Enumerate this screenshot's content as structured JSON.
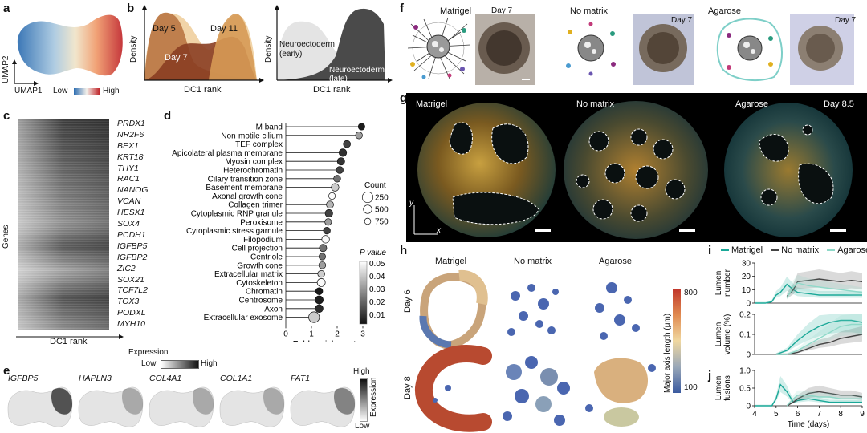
{
  "panels": {
    "a": {
      "letter": "a",
      "umap2": "UMAP2",
      "umap1": "UMAP1",
      "low": "Low",
      "high": "High"
    },
    "b": {
      "letter": "b",
      "density": "Density",
      "dc1": "DC1 rank",
      "day5": "Day 5",
      "day7": "Day 7",
      "day11": "Day 11",
      "ne_early_1": "Neuroectoderm",
      "ne_early_2": "(early)",
      "ne_late_1": "Neuroectoderm",
      "ne_late_2": "(late)"
    },
    "c": {
      "letter": "c",
      "genes_label": "Genes",
      "dc1": "DC1 rank",
      "expression": "Expression",
      "low": "Low",
      "high": "High",
      "genes": [
        "PRDX1",
        "NR2F6",
        "BEX1",
        "KRT18",
        "THY1",
        "RAC1",
        "NANOG",
        "VCAN",
        "HESX1",
        "SOX4",
        "PCDH1",
        "IGFBP5",
        "IGFBP2",
        "ZIC2",
        "SOX21",
        "TCF7L2",
        "TOX3",
        "PODXL",
        "MYH10"
      ]
    },
    "e": {
      "letter": "e",
      "genes": [
        "IGFBP5",
        "HAPLN3",
        "COL4A1",
        "COL1A1",
        "FAT1"
      ],
      "high": "High",
      "low": "Low",
      "expression": "Expression"
    },
    "f": {
      "letter": "f",
      "matrigel": "Matrigel",
      "no_matrix": "No matrix",
      "agarose": "Agarose",
      "day": "Day 7"
    },
    "g": {
      "letter": "g",
      "matrigel": "Matrigel",
      "no_matrix": "No matrix",
      "agarose": "Agarose",
      "day": "Day 8.5",
      "y": "y",
      "x": "x"
    },
    "h": {
      "letter": "h",
      "matrigel": "Matrigel",
      "no_matrix": "No matrix",
      "agarose": "Agarose",
      "day6": "Day 6",
      "day8": "Day 8",
      "colorbar_label": "Major axis length (μm)",
      "cb_high": "800",
      "cb_low": "100"
    },
    "i": {
      "letter": "i",
      "legend": [
        "Matrigel",
        "No matrix",
        "Agarose"
      ],
      "ylabel_top_1": "Lumen",
      "ylabel_top_2": "number",
      "ylabel_mid_1": "Lumen",
      "ylabel_mid_2": "volume (%)"
    },
    "j": {
      "letter": "j",
      "ylabel_1": "Lumen",
      "ylabel_2": "fusions",
      "xlabel": "Time (days)"
    },
    "d": {
      "letter": "d",
      "xlabel": "Fold enrichment",
      "count_title": "Count",
      "pval_title": "P value"
    }
  },
  "chart_data": [
    {
      "type": "scatter",
      "panel": "d",
      "xlabel": "Fold enrichment",
      "xlim": [
        0,
        3
      ],
      "xticks": [
        0,
        1,
        2,
        3
      ],
      "categories": [
        "M band",
        "Non-motile cilium",
        "TEF complex",
        "Apicolateral plasma membrane",
        "Myosin complex",
        "Heterochromatin",
        "Cilary transition zone",
        "Basement membrane",
        "Axonal growth cone",
        "Collagen trimer",
        "Cytoplasmic RNP granule",
        "Peroxisome",
        "Cytoplasmic stress garnule",
        "Filopodium",
        "Cell projection",
        "Centriole",
        "Growth cone",
        "Extracellular matrix",
        "Cytoskeleton",
        "Chromatin",
        "Centrosome",
        "Axon",
        "Extracellular exosome"
      ],
      "values": [
        2.95,
        2.85,
        2.38,
        2.22,
        2.15,
        2.1,
        2.0,
        1.92,
        1.8,
        1.72,
        1.68,
        1.65,
        1.6,
        1.55,
        1.45,
        1.42,
        1.42,
        1.38,
        1.38,
        1.3,
        1.3,
        1.3,
        1.1
      ],
      "pvalues": [
        0.002,
        0.03,
        0.01,
        0.006,
        0.007,
        0.01,
        0.02,
        0.04,
        0.05,
        0.035,
        0.01,
        0.03,
        0.01,
        0.05,
        0.02,
        0.02,
        0.03,
        0.04,
        0.05,
        0.001,
        0.002,
        0.005,
        0.04
      ],
      "counts": [
        300,
        320,
        350,
        400,
        380,
        340,
        330,
        400,
        300,
        350,
        400,
        300,
        320,
        400,
        380,
        300,
        330,
        330,
        450,
        340,
        450,
        420,
        750
      ],
      "count_legend": [
        250,
        500,
        750
      ],
      "pvalue_legend": [
        0.05,
        0.04,
        0.03,
        0.02,
        0.01
      ]
    },
    {
      "type": "line",
      "panel": "i",
      "ylabel": "Lumen number",
      "ylim": [
        0,
        30
      ],
      "yticks": [
        0,
        10,
        20,
        30
      ],
      "xlim": [
        4,
        9
      ],
      "series": [
        {
          "name": "Matrigel",
          "color": "#1aa898",
          "x": [
            4,
            4.5,
            4.8,
            5,
            5.2,
            5.5,
            5.8,
            6,
            6.5,
            7,
            7.5,
            8,
            8.5,
            9
          ],
          "y": [
            0,
            0,
            1,
            6,
            8,
            14,
            10,
            8,
            7,
            6,
            6,
            6,
            6,
            6
          ]
        },
        {
          "name": "No matrix",
          "color": "#444444",
          "x": [
            5.5,
            5.8,
            6,
            6.5,
            7,
            7.5,
            8,
            8.5,
            9
          ],
          "y": [
            5,
            10,
            16,
            17,
            18,
            17,
            16,
            17,
            16
          ]
        },
        {
          "name": "Agarose",
          "color": "#8fd9c9",
          "x": [
            5.5,
            5.8,
            6,
            6.5,
            7,
            7.5,
            8,
            8.5,
            9
          ],
          "y": [
            4,
            12,
            15,
            13,
            12,
            11,
            10,
            9,
            8
          ]
        }
      ]
    },
    {
      "type": "line",
      "panel": "i-volume",
      "ylabel": "Lumen volume (%)",
      "ylim": [
        0,
        0.2
      ],
      "yticks": [
        0,
        0.1,
        0.2
      ],
      "xlim": [
        4,
        9
      ],
      "series": [
        {
          "name": "Matrigel",
          "color": "#1aa898",
          "x": [
            5,
            5.5,
            6,
            6.5,
            7,
            7.5,
            8,
            8.5,
            9
          ],
          "y": [
            0,
            0.02,
            0.07,
            0.11,
            0.14,
            0.16,
            0.17,
            0.17,
            0.16
          ]
        },
        {
          "name": "No matrix",
          "color": "#444444",
          "x": [
            5,
            5.5,
            6,
            6.5,
            7,
            7.5,
            8,
            8.5,
            9
          ],
          "y": [
            0,
            0.0,
            0.01,
            0.03,
            0.05,
            0.06,
            0.08,
            0.09,
            0.1
          ]
        },
        {
          "name": "Agarose",
          "color": "#8fd9c9",
          "x": [
            5,
            5.5,
            6,
            6.5,
            7,
            7.5,
            8,
            8.5,
            9
          ],
          "y": [
            0,
            0.0,
            0.02,
            0.05,
            0.08,
            0.11,
            0.14,
            0.15,
            0.15
          ]
        }
      ]
    },
    {
      "type": "line",
      "panel": "j",
      "ylabel": "Lumen fusions",
      "xlabel": "Time (days)",
      "ylim": [
        0,
        1
      ],
      "yticks": [
        0,
        0.5,
        1.0
      ],
      "xlim": [
        4,
        9
      ],
      "xticks": [
        4,
        5,
        6,
        7,
        8,
        9
      ],
      "series": [
        {
          "name": "Matrigel",
          "color": "#1aa898",
          "x": [
            4,
            4.8,
            5,
            5.2,
            5.5,
            5.8,
            6,
            6.5,
            7,
            7.5,
            8,
            8.5,
            9
          ],
          "y": [
            0,
            0,
            0.2,
            0.6,
            0.4,
            0.1,
            0.15,
            0.2,
            0.15,
            0.1,
            0.1,
            0.1,
            0.1
          ]
        },
        {
          "name": "No matrix",
          "color": "#444444",
          "x": [
            5.5,
            5.8,
            6,
            6.5,
            7,
            7.5,
            8,
            8.5,
            9
          ],
          "y": [
            0,
            0.1,
            0.2,
            0.35,
            0.4,
            0.35,
            0.3,
            0.3,
            0.25
          ]
        },
        {
          "name": "Agarose",
          "color": "#8fd9c9",
          "x": [
            5.5,
            5.8,
            6,
            6.5,
            7,
            7.5,
            8,
            8.5,
            9
          ],
          "y": [
            0,
            0.2,
            0.3,
            0.3,
            0.25,
            0.25,
            0.2,
            0.2,
            0.2
          ]
        }
      ]
    }
  ]
}
